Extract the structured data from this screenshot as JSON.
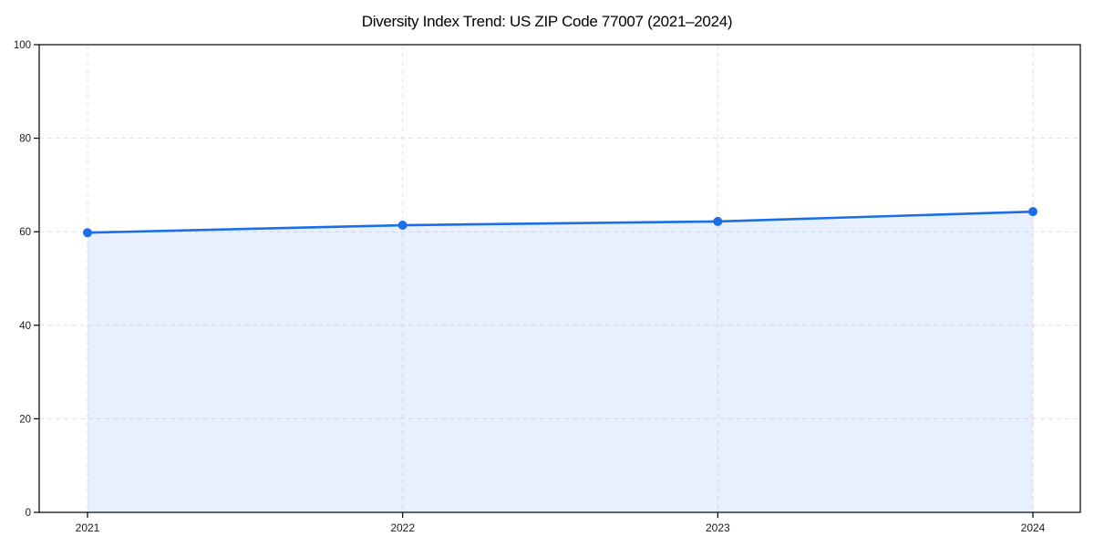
{
  "figure": {
    "title": "Diversity Index Trend: US ZIP Code 77007 (2021–2024)"
  },
  "chart_data": {
    "type": "line",
    "title": "Diversity Index Trend: US ZIP Code 77007 (2021–2024)",
    "categories": [
      "2021",
      "2022",
      "2023",
      "2024"
    ],
    "series": [
      {
        "name": "Diversity Index",
        "values": [
          59.8,
          61.4,
          62.2,
          64.3
        ]
      }
    ],
    "xlabel": "",
    "ylabel": "",
    "ylim": [
      0,
      100
    ],
    "yticks": [
      0,
      20,
      40,
      60,
      80,
      100
    ],
    "grid": true,
    "grid_style": "dashed",
    "legend_position": "none",
    "marker": "circle",
    "colors": {
      "line": "#1a6ee8",
      "marker": "#1a6ee8",
      "fill": "rgba(26, 110, 232, 0.10)",
      "grid": "#e1e1e1",
      "spine": "#000000",
      "tick_label": "#1a1a1a"
    }
  }
}
